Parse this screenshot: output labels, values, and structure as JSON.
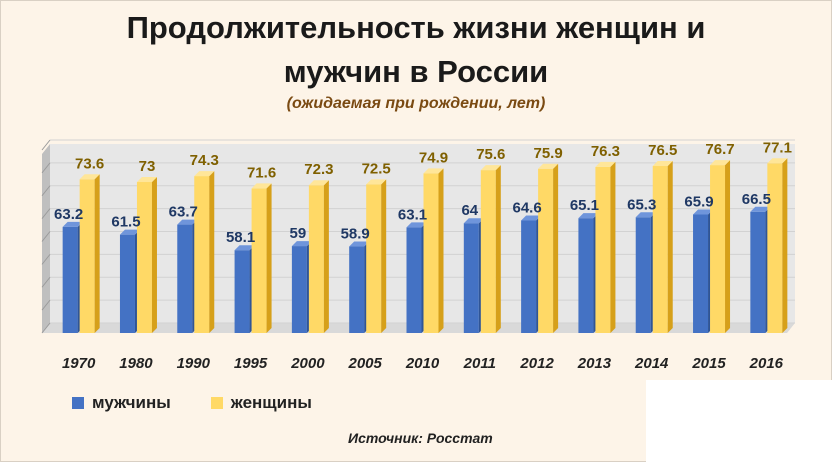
{
  "title_line1": "Продолжительность  жизни женщин и",
  "title_line2": "мужчин в России",
  "subtitle": "(ожидаемая при рождении, лет)",
  "source": "Источник: Росстат",
  "colors": {
    "men": "#4472c4",
    "women": "#ffd966",
    "women_label": "#7f6000",
    "men_label": "#1f3864"
  },
  "chart_data": {
    "type": "bar",
    "categories": [
      "1970",
      "1980",
      "1990",
      "1995",
      "2000",
      "2005",
      "2010",
      "2011",
      "2012",
      "2013",
      "2014",
      "2015",
      "2016"
    ],
    "series": [
      {
        "name": "мужчины",
        "values": [
          63.2,
          61.5,
          63.7,
          58.1,
          59,
          58.9,
          63.1,
          64,
          64.6,
          65.1,
          65.3,
          65.9,
          66.5
        ]
      },
      {
        "name": "женщины",
        "values": [
          73.6,
          73,
          74.3,
          71.6,
          72.3,
          72.5,
          74.9,
          75.6,
          75.9,
          76.3,
          76.5,
          76.7,
          77.1
        ]
      }
    ],
    "ylim": [
      40,
      80
    ],
    "grid": true,
    "legend": "bottom-left"
  }
}
